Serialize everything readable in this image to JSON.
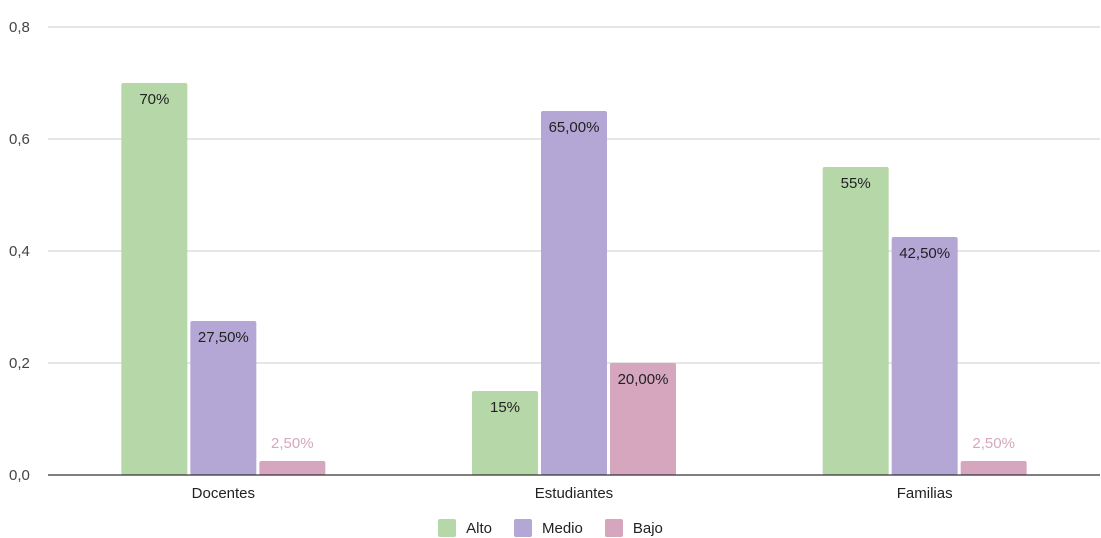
{
  "chart_data": {
    "type": "bar",
    "categories": [
      "Docentes",
      "Estudiantes",
      "Familias"
    ],
    "series": [
      {
        "name": "Alto",
        "color": "#b6d7a8",
        "values": [
          0.7,
          0.15,
          0.55
        ],
        "labels": [
          "70%",
          "15%",
          "55%"
        ]
      },
      {
        "name": "Medio",
        "color": "#b4a7d6",
        "values": [
          0.275,
          0.65,
          0.425
        ],
        "labels": [
          "27,50%",
          "65,00%",
          "42,50%"
        ]
      },
      {
        "name": "Bajo",
        "color": "#d5a6bd",
        "values": [
          0.025,
          0.2,
          0.025
        ],
        "labels": [
          "2,50%",
          "20,00%",
          "2,50%"
        ]
      }
    ],
    "yticks": [
      "0,0",
      "0,2",
      "0,4",
      "0,6",
      "0,8"
    ],
    "ylim": [
      0,
      0.8
    ],
    "grid": true,
    "legend_position": "bottom",
    "title": "",
    "xlabel": "",
    "ylabel": ""
  }
}
